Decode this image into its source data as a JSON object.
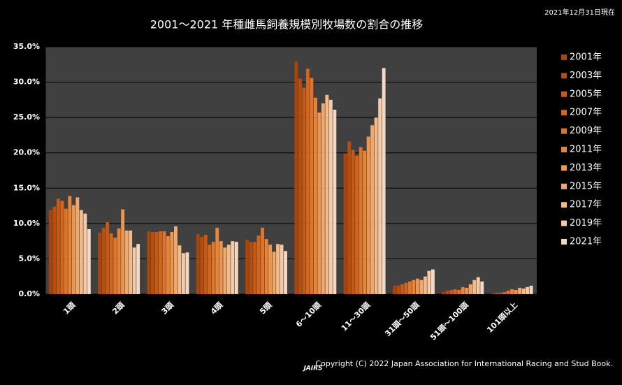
{
  "chart_data": {
    "type": "bar",
    "title": "2001～2021 年種雌馬飼養規模別牧場数の割合の推移",
    "date_note": "2021年12月31日現在",
    "copyright": "Copyright (C) 2022  Japan Association for International Racing and Stud Book.",
    "logo": "JAIRS",
    "categories": [
      "1頭",
      "2頭",
      "3頭",
      "4頭",
      "5頭",
      "6～10頭",
      "11～30頭",
      "31頭～50頭",
      "51頭～100頭",
      "101頭以上"
    ],
    "series": [
      {
        "name": "2001年",
        "color": "#a9440a",
        "values": [
          11.9,
          8.7,
          8.9,
          8.5,
          7.7,
          32.9,
          19.9,
          1.2,
          0.3,
          0.1
        ]
      },
      {
        "name": "2003年",
        "color": "#b84e0e",
        "values": [
          12.4,
          9.4,
          8.8,
          8.1,
          7.4,
          30.5,
          21.6,
          1.2,
          0.5,
          0.2
        ]
      },
      {
        "name": "2005年",
        "color": "#c65a14",
        "values": [
          13.5,
          10.2,
          8.8,
          8.4,
          7.4,
          29.2,
          20.4,
          1.4,
          0.6,
          0.2
        ]
      },
      {
        "name": "2007年",
        "color": "#d4661c",
        "values": [
          13.2,
          8.6,
          8.9,
          7.0,
          8.3,
          31.9,
          19.6,
          1.6,
          0.7,
          0.3
        ]
      },
      {
        "name": "2009年",
        "color": "#e07428",
        "values": [
          12.1,
          8.0,
          8.9,
          7.4,
          9.4,
          30.6,
          20.8,
          1.8,
          0.6,
          0.5
        ]
      },
      {
        "name": "2011年",
        "color": "#e98536",
        "values": [
          13.9,
          9.3,
          8.2,
          9.4,
          7.8,
          27.8,
          20.3,
          2.0,
          1.0,
          0.7
        ]
      },
      {
        "name": "2013年",
        "color": "#ee9650",
        "values": [
          12.6,
          12.0,
          8.8,
          7.5,
          7.0,
          25.7,
          22.3,
          2.2,
          0.9,
          0.6
        ]
      },
      {
        "name": "2015年",
        "color": "#f1a86c",
        "values": [
          13.7,
          9.0,
          9.6,
          6.6,
          6.0,
          27.0,
          23.9,
          2.0,
          1.4,
          0.9
        ]
      },
      {
        "name": "2017年",
        "color": "#f3ba8a",
        "values": [
          11.9,
          9.0,
          6.9,
          7.0,
          7.1,
          28.2,
          25.0,
          2.5,
          2.0,
          0.8
        ]
      },
      {
        "name": "2019年",
        "color": "#f4caa8",
        "values": [
          11.4,
          6.6,
          5.8,
          7.5,
          7.0,
          27.5,
          27.7,
          3.3,
          2.4,
          1.0
        ]
      },
      {
        "name": "2021年",
        "color": "#f5d8c4",
        "values": [
          9.2,
          7.1,
          5.9,
          7.4,
          6.1,
          26.1,
          32.0,
          3.5,
          1.8,
          1.2
        ]
      }
    ],
    "ylim": [
      0,
      35
    ],
    "yticks": [
      {
        "value": 0,
        "label": "0.0%"
      },
      {
        "value": 5,
        "label": "5.0%"
      },
      {
        "value": 10,
        "label": "10.0%"
      },
      {
        "value": 15,
        "label": "15.0%"
      },
      {
        "value": 20,
        "label": "20.0%"
      },
      {
        "value": 25,
        "label": "25.0%"
      },
      {
        "value": 30,
        "label": "30.0%"
      },
      {
        "value": 35,
        "label": "35.0%"
      }
    ],
    "grid": true,
    "legend": "right"
  }
}
